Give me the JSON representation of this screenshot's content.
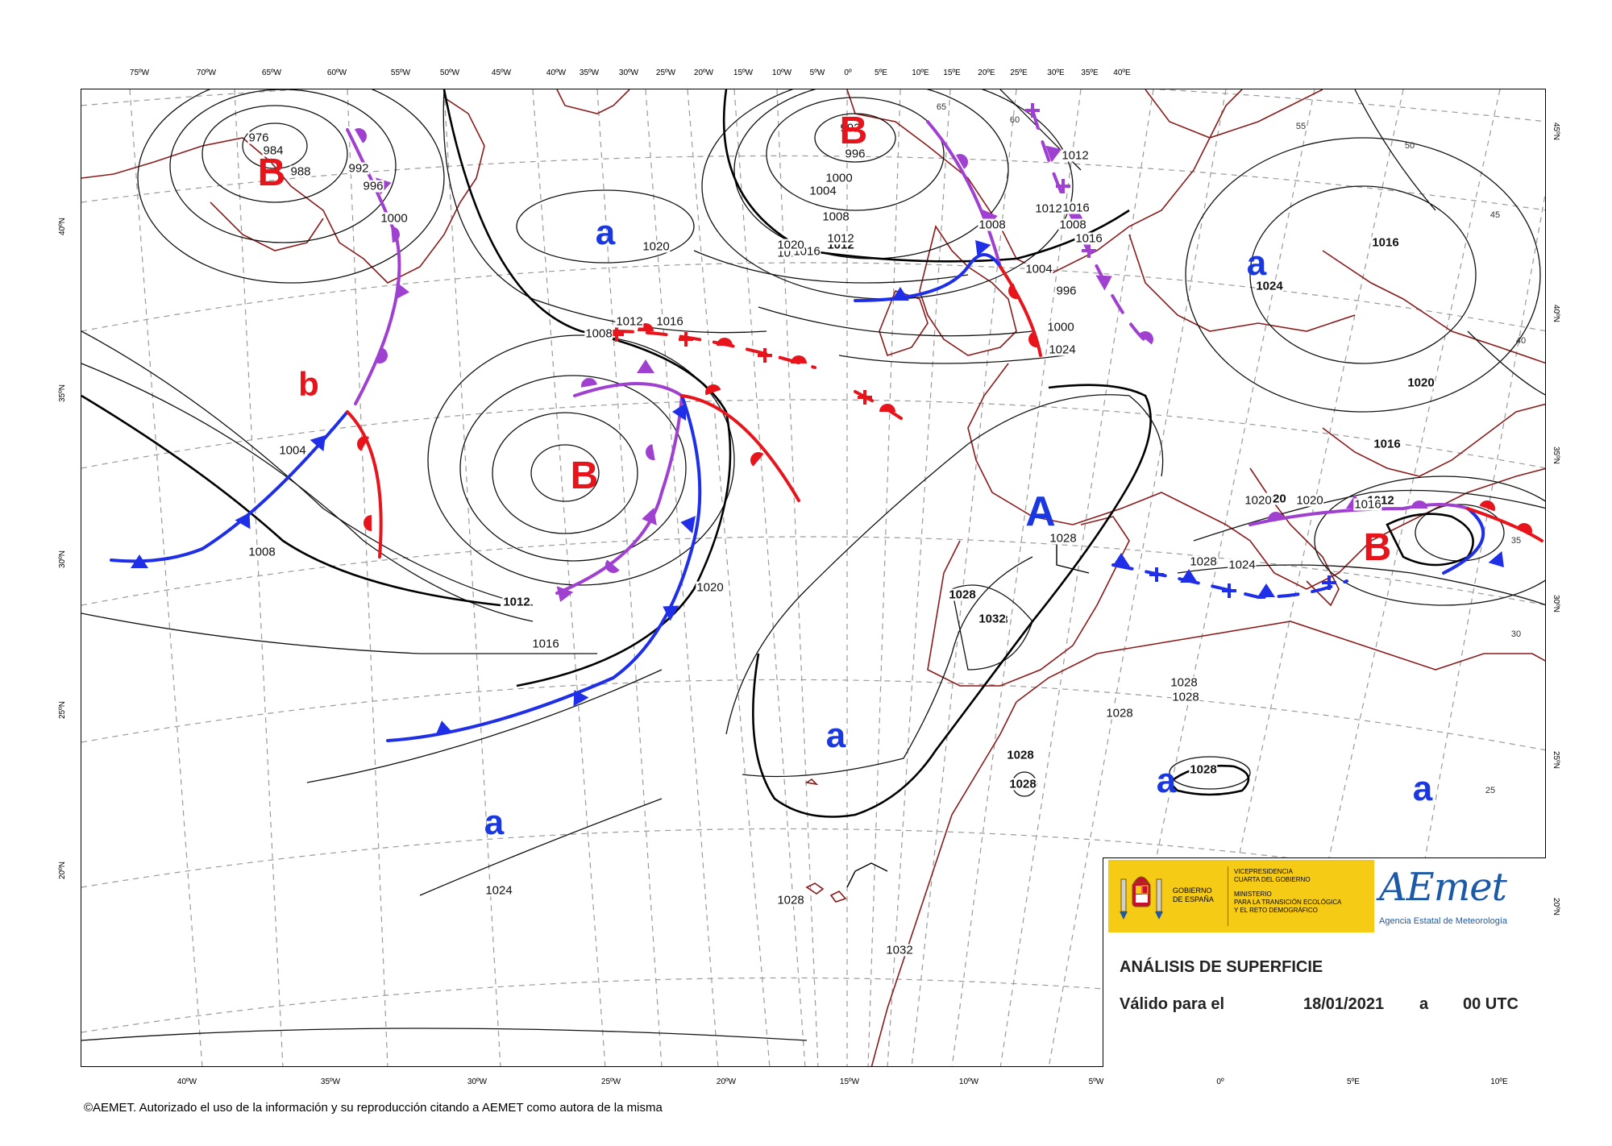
{
  "top_longitudes": [
    "75ºW",
    "70ºW",
    "65ºW",
    "60ºW",
    "55ºW",
    "50ºW",
    "45ºW",
    "40ºW",
    "35ºW",
    "30ºW",
    "25ºW",
    "20ºW",
    "15ºW",
    "10ºW",
    "5ºW",
    "0º",
    "5ºE",
    "10ºE",
    "15ºE",
    "20ºE",
    "25ºE",
    "30ºE",
    "35ºE",
    "40ºE"
  ],
  "bottom_longitudes": [
    "40ºW",
    "35ºW",
    "30ºW",
    "25ºW",
    "20ºW",
    "15ºW",
    "10ºW",
    "5ºW",
    "0º",
    "5ºE",
    "10ºE"
  ],
  "left_latitudes": [
    "40ºN",
    "35ºN",
    "30ºN",
    "25ºN",
    "20ºN"
  ],
  "right_latitudes": [
    "45ºN",
    "40ºN",
    "35ºN",
    "30ºN",
    "25ºN",
    "20ºN"
  ],
  "interior_latitude_labels": [
    "65",
    "60",
    "55",
    "50",
    "45",
    "40",
    "35",
    "30",
    "25"
  ],
  "pressure_systems": [
    {
      "type": "low",
      "label": "B"
    },
    {
      "type": "low",
      "label": "B"
    },
    {
      "type": "low",
      "label": "B"
    },
    {
      "type": "low",
      "label": "B"
    },
    {
      "type": "secondary_low",
      "label": "b"
    },
    {
      "type": "high",
      "label": "A"
    },
    {
      "type": "secondary_high",
      "label": "a"
    },
    {
      "type": "secondary_high",
      "label": "a"
    },
    {
      "type": "secondary_high",
      "label": "a"
    },
    {
      "type": "secondary_high",
      "label": "a"
    },
    {
      "type": "secondary_high",
      "label": "a"
    },
    {
      "type": "secondary_high",
      "label": "a"
    }
  ],
  "isobar_labels": [
    "976",
    "984",
    "988",
    "992",
    "996",
    "1000",
    "1004",
    "1008",
    "1012",
    "1016",
    "1020",
    "1024",
    "1028",
    "1032",
    "1016",
    "1012",
    "992",
    "996",
    "1000",
    "1004",
    "1008",
    "1012",
    "1016",
    "1020",
    "1016",
    "1012",
    "1008",
    "1004",
    "1000",
    "996",
    "1008",
    "1012",
    "1016",
    "1020",
    "1024",
    "1028",
    "1028",
    "1028",
    "1028",
    "1028",
    "1028",
    "1028",
    "1028",
    "1028",
    "1032",
    "1020",
    "1016",
    "1012",
    "1016",
    "1020",
    "1024",
    "1016",
    "1020",
    "1008",
    "1012",
    "1016",
    "1020",
    "1024",
    "1028"
  ],
  "front_colors": {
    "cold": "#1f2fe8",
    "warm": "#e8141b",
    "occluded": "#a040d0"
  },
  "logo": {
    "gov_name": "GOBIERNO\nDE ESPAÑA",
    "gov_vice": "VICEPRESIDENCIA\nCUARTA DEL GOBIERNO",
    "gov_ministry": "MINISTERIO\nPARA LA TRANSICIÓN ECOLÓGICA\nY EL RETO DEMOGRÁFICO",
    "aemet_name": "AEmet",
    "aemet_subtitle": "Agencia Estatal de Meteorología"
  },
  "title": "ANÁLISIS DE SUPERFICIE",
  "valid_label": "Válido para el",
  "valid_date": "18/01/2021",
  "valid_sep": "a",
  "valid_time": "00 UTC",
  "copyright": "©AEMET. Autorizado el uso de la información y su reproducción citando a AEMET como autora de la misma"
}
